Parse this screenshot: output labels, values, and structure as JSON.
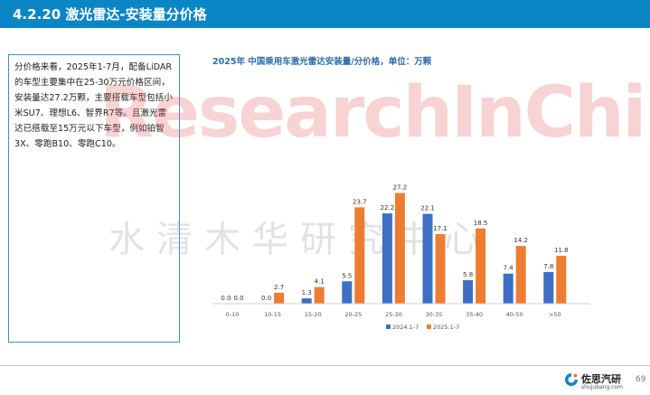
{
  "header": {
    "title": "4.2.20 激光雷达-安装量分价格"
  },
  "textbox": {
    "text": "分价格来看，2025年1-7月，配备LiDAR的车型主要集中在25-30万元价格区间，安装量达27.2万颗，主要搭载车型包括小米SU7、理想L6、智界R7等。且激光雷达已搭载至15万元以下车型，例如铂智3X、零跑B10、零跑C10。"
  },
  "watermark": {
    "text": "ResearchInChina",
    "cn_text": "水清木华研究中心"
  },
  "footer": {
    "brand": "佐思汽研",
    "url": "shujubang.com",
    "page": "69"
  },
  "colors": {
    "header": "#0a86c4",
    "series_2024": "#3d6fc4",
    "series_2025": "#ee7d31"
  },
  "chart_data": {
    "type": "bar",
    "title": "2025年 中国乘用车激光雷达安装量/分价格，单位：万颗",
    "categories": [
      "0-10",
      "10-15",
      "15-20",
      "20-25",
      "25-30",
      "30-35",
      "35-40",
      "40-50",
      ">50"
    ],
    "series": [
      {
        "name": "2024.1-7",
        "values": [
          0.0,
          0.0,
          1.3,
          5.5,
          22.2,
          22.1,
          5.8,
          7.4,
          7.8
        ],
        "labels": [
          "0.0",
          "0.0",
          "1.3",
          "5.5",
          "22.2",
          "22.1",
          "5.8",
          "7.4",
          "7.8"
        ]
      },
      {
        "name": "2025.1-7",
        "values": [
          0.0,
          2.7,
          4.1,
          23.7,
          27.2,
          17.1,
          18.5,
          14.2,
          11.8
        ],
        "labels": [
          "0.0",
          "2.7",
          "4.1",
          "23.7",
          "27.2",
          "17.1",
          "18.5",
          "14.2",
          "11.8"
        ]
      }
    ],
    "ylim": [
      0,
      28
    ],
    "legend": "bottom"
  }
}
